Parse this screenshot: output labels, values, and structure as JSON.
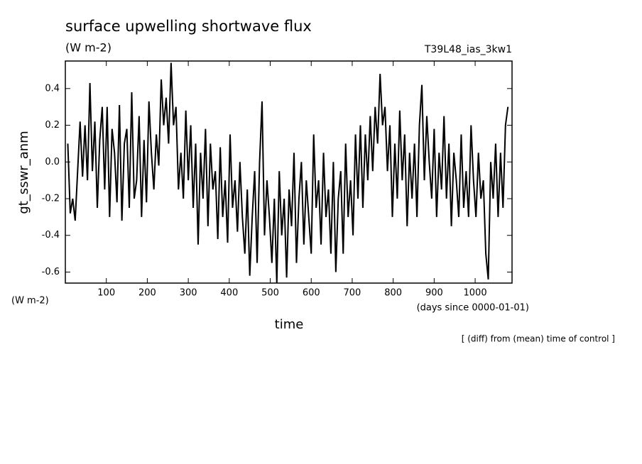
{
  "chart_data": {
    "type": "line",
    "title": "surface upwelling shortwave flux",
    "subtitle": "(W m-2)",
    "experiment": "T39L48_ias_3kw1",
    "y_label": "gt_sswr_anm",
    "y_unit": "(W m-2)",
    "x_unit": "(days since 0000-01-01)",
    "x_label": "time",
    "note": "[ (diff) from (mean) time of control ]",
    "xlim": [
      0,
      1090
    ],
    "ylim": [
      -0.66,
      0.55
    ],
    "xticks": [
      100,
      200,
      300,
      400,
      500,
      600,
      700,
      800,
      900,
      1000
    ],
    "yticks": [
      0.4,
      0.2,
      {
        "value": 0,
        "label": "0.0"
      },
      -0.2,
      -0.4,
      -0.6
    ],
    "color": "#000000",
    "x": [
      6,
      12,
      18,
      24,
      30,
      36,
      42,
      48,
      54,
      60,
      66,
      72,
      78,
      84,
      90,
      96,
      102,
      108,
      114,
      120,
      126,
      132,
      138,
      144,
      150,
      156,
      162,
      168,
      174,
      180,
      186,
      192,
      198,
      204,
      210,
      216,
      222,
      228,
      234,
      240,
      246,
      252,
      258,
      264,
      270,
      276,
      282,
      288,
      294,
      300,
      306,
      312,
      318,
      324,
      330,
      336,
      342,
      348,
      354,
      360,
      366,
      372,
      378,
      384,
      390,
      396,
      402,
      408,
      414,
      420,
      426,
      432,
      438,
      444,
      450,
      456,
      462,
      468,
      474,
      480,
      486,
      492,
      498,
      504,
      510,
      516,
      522,
      528,
      534,
      540,
      546,
      552,
      558,
      564,
      570,
      576,
      582,
      588,
      594,
      600,
      606,
      612,
      618,
      624,
      630,
      636,
      642,
      648,
      654,
      660,
      666,
      672,
      678,
      684,
      690,
      696,
      702,
      708,
      714,
      720,
      726,
      732,
      738,
      744,
      750,
      756,
      762,
      768,
      774,
      780,
      786,
      792,
      798,
      804,
      810,
      816,
      822,
      828,
      834,
      840,
      846,
      852,
      858,
      864,
      870,
      876,
      882,
      888,
      894,
      900,
      906,
      912,
      918,
      924,
      930,
      936,
      942,
      948,
      954,
      960,
      966,
      972,
      978,
      984,
      990,
      996,
      1002,
      1008,
      1014,
      1020,
      1026,
      1032,
      1038,
      1044,
      1050,
      1056,
      1062,
      1068,
      1074,
      1080
    ],
    "values": [
      0.1,
      -0.28,
      -0.2,
      -0.32,
      -0.05,
      0.22,
      -0.08,
      0.2,
      -0.1,
      0.43,
      -0.05,
      0.22,
      -0.25,
      0.12,
      0.3,
      -0.15,
      0.3,
      -0.3,
      0.18,
      0.05,
      -0.22,
      0.31,
      -0.32,
      0.1,
      0.18,
      -0.25,
      0.38,
      -0.2,
      -0.1,
      0.25,
      -0.3,
      0.12,
      -0.22,
      0.33,
      0.05,
      -0.15,
      0.15,
      -0.02,
      0.45,
      0.2,
      0.35,
      0.1,
      0.54,
      0.2,
      0.3,
      -0.15,
      0.05,
      -0.2,
      0.28,
      -0.1,
      0.2,
      -0.25,
      0.1,
      -0.45,
      0.05,
      -0.2,
      0.18,
      -0.35,
      0.1,
      -0.15,
      -0.05,
      -0.42,
      0.08,
      -0.3,
      -0.1,
      -0.44,
      0.15,
      -0.25,
      -0.1,
      -0.38,
      0.0,
      -0.3,
      -0.5,
      -0.15,
      -0.62,
      -0.3,
      -0.05,
      -0.55,
      0.0,
      0.33,
      -0.4,
      -0.1,
      -0.3,
      -0.55,
      -0.2,
      -0.66,
      -0.05,
      -0.4,
      -0.2,
      -0.63,
      -0.15,
      -0.35,
      0.05,
      -0.55,
      -0.2,
      0.0,
      -0.45,
      -0.1,
      -0.3,
      -0.5,
      0.15,
      -0.25,
      -0.1,
      -0.45,
      0.05,
      -0.3,
      -0.15,
      -0.5,
      0.0,
      -0.6,
      -0.2,
      -0.05,
      -0.5,
      0.1,
      -0.3,
      -0.1,
      -0.4,
      0.15,
      -0.2,
      0.2,
      -0.25,
      0.15,
      -0.1,
      0.25,
      -0.05,
      0.3,
      0.1,
      0.48,
      0.2,
      0.3,
      -0.05,
      0.2,
      -0.3,
      0.1,
      -0.2,
      0.28,
      -0.1,
      0.15,
      -0.35,
      0.05,
      -0.2,
      0.1,
      -0.3,
      0.2,
      0.42,
      -0.1,
      0.25,
      0.0,
      -0.2,
      0.18,
      -0.3,
      0.05,
      -0.15,
      0.25,
      -0.2,
      0.1,
      -0.35,
      0.05,
      -0.1,
      -0.3,
      0.15,
      -0.25,
      -0.05,
      -0.3,
      0.2,
      -0.1,
      -0.3,
      0.05,
      -0.2,
      -0.1,
      -0.5,
      -0.64,
      0.0,
      -0.2,
      0.1,
      -0.3,
      0.05,
      -0.25,
      0.2,
      0.3
    ]
  }
}
